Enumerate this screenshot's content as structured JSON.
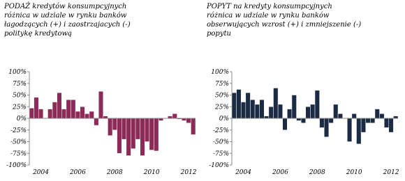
{
  "chart_data": [
    {
      "type": "bar",
      "title": [
        "PODAŻ kredytów konsumpcyjnych",
        "różnica w udziale w rynku banków",
        "łagodzących (+) i zaostrzajacych (-)",
        "politykę kredytową"
      ],
      "categories": [
        null,
        null,
        "2004",
        null,
        null,
        null,
        null,
        null,
        null,
        null,
        "2006",
        null,
        null,
        null,
        null,
        null,
        null,
        null,
        "2008",
        null,
        null,
        null,
        null,
        null,
        null,
        null,
        "2010",
        null,
        null,
        null,
        null,
        null,
        null,
        null,
        "2012",
        null
      ],
      "values": [
        22,
        45,
        20,
        0,
        20,
        35,
        55,
        20,
        40,
        40,
        15,
        25,
        10,
        15,
        -15,
        58,
        5,
        -37,
        -25,
        -75,
        -45,
        -80,
        -65,
        -45,
        -80,
        -50,
        -68,
        -70,
        -5,
        0,
        5,
        10,
        -2,
        -5,
        -10,
        -35
      ],
      "color": "#8c2a58",
      "ylim": [
        -100,
        100
      ],
      "yticks": [
        {
          "value": -100,
          "label": "-100%"
        },
        {
          "value": -75,
          "label": "-75%"
        },
        {
          "value": -50,
          "label": "-50%"
        },
        {
          "value": -25,
          "label": "-25%"
        },
        {
          "value": 0,
          "label": "0%"
        },
        {
          "value": 25,
          "label": "25%"
        },
        {
          "value": 50,
          "label": "50%"
        },
        {
          "value": 75,
          "label": "75%"
        },
        {
          "value": 100,
          "label": "100%"
        }
      ]
    },
    {
      "type": "bar",
      "title": [
        "POPYT na kredyty konsumpcyjnych",
        "różnica w udziale w rynku banków",
        "obserwujących wzrost (+) i zmniejszenie (-)",
        "popytu"
      ],
      "categories": [
        null,
        null,
        "2004",
        null,
        null,
        null,
        null,
        null,
        null,
        null,
        "2006",
        null,
        null,
        null,
        null,
        null,
        null,
        null,
        "2008",
        null,
        null,
        null,
        null,
        null,
        null,
        null,
        "2010",
        null,
        null,
        null,
        null,
        null,
        null,
        null,
        "2012",
        null
      ],
      "values": [
        55,
        62,
        35,
        55,
        40,
        30,
        40,
        5,
        25,
        65,
        30,
        -25,
        20,
        50,
        -5,
        -10,
        25,
        30,
        60,
        -20,
        -40,
        -10,
        30,
        10,
        0,
        -50,
        10,
        -55,
        -30,
        -10,
        -10,
        20,
        10,
        -20,
        -30,
        5
      ],
      "color": "#1c2b44",
      "ylim": [
        -100,
        100
      ],
      "yticks": [
        {
          "value": -100,
          "label": "-100%"
        },
        {
          "value": -75,
          "label": "-75%"
        },
        {
          "value": -50,
          "label": "-50%"
        },
        {
          "value": -25,
          "label": "-25%"
        },
        {
          "value": 0,
          "label": "0%"
        },
        {
          "value": 25,
          "label": "25%"
        },
        {
          "value": 50,
          "label": "50%"
        },
        {
          "value": 75,
          "label": "75%"
        },
        {
          "value": 100,
          "label": "100%"
        }
      ]
    }
  ]
}
